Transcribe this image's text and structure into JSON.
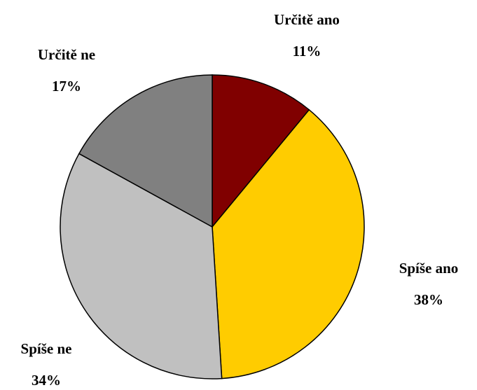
{
  "chart_data": {
    "type": "pie",
    "categories": [
      "Určitě ano",
      "Spíše ano",
      "Spíše ne",
      "Určitě ne"
    ],
    "values": [
      11,
      38,
      34,
      17
    ],
    "value_labels": [
      "11%",
      "38%",
      "34%",
      "17%"
    ],
    "colors": [
      "#800000",
      "#ffcc00",
      "#c0c0c0",
      "#808080"
    ]
  }
}
